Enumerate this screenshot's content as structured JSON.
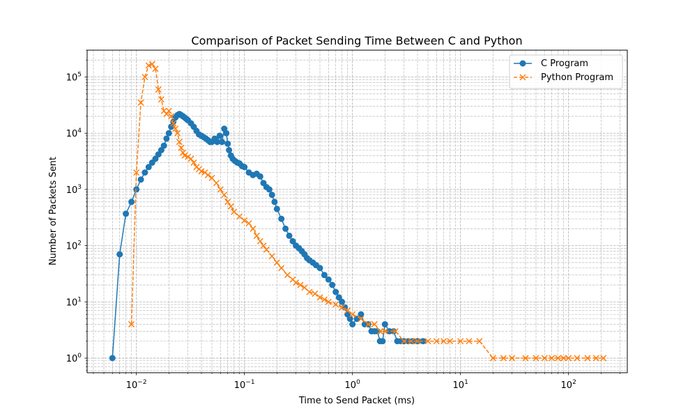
{
  "chart_data": {
    "type": "line",
    "title": "Comparison of Packet Sending Time Between C and Python",
    "xlabel": "Time to Send Packet (ms)",
    "ylabel": "Number of Packets Sent",
    "xscale": "log",
    "yscale": "log",
    "xlim": [
      0.0035,
      350
    ],
    "ylim": [
      0.55,
      300000
    ],
    "x_ticks": [
      {
        "value": 0.01,
        "base": "10",
        "exp": "−2"
      },
      {
        "value": 0.1,
        "base": "10",
        "exp": "−1"
      },
      {
        "value": 1,
        "base": "10",
        "exp": "0"
      },
      {
        "value": 10,
        "base": "10",
        "exp": "1"
      },
      {
        "value": 100,
        "base": "10",
        "exp": "2"
      }
    ],
    "y_ticks": [
      {
        "value": 1,
        "base": "10",
        "exp": "0"
      },
      {
        "value": 10,
        "base": "10",
        "exp": "1"
      },
      {
        "value": 100,
        "base": "10",
        "exp": "2"
      },
      {
        "value": 1000,
        "base": "10",
        "exp": "3"
      },
      {
        "value": 10000,
        "base": "10",
        "exp": "4"
      },
      {
        "value": 100000,
        "base": "10",
        "exp": "5"
      }
    ],
    "grid": true,
    "legend_position": "top-right",
    "series": [
      {
        "name": "C Program",
        "color": "#1f77b4",
        "marker": "circle",
        "linestyle": "solid",
        "x": [
          0.006,
          0.007,
          0.008,
          0.009,
          0.01,
          0.011,
          0.012,
          0.013,
          0.014,
          0.015,
          0.016,
          0.017,
          0.018,
          0.019,
          0.02,
          0.021,
          0.022,
          0.023,
          0.024,
          0.025,
          0.026,
          0.027,
          0.028,
          0.029,
          0.03,
          0.032,
          0.034,
          0.036,
          0.038,
          0.04,
          0.042,
          0.044,
          0.046,
          0.048,
          0.05,
          0.053,
          0.056,
          0.059,
          0.062,
          0.065,
          0.068,
          0.07,
          0.072,
          0.075,
          0.078,
          0.082,
          0.086,
          0.09,
          0.095,
          0.1,
          0.11,
          0.12,
          0.13,
          0.14,
          0.15,
          0.16,
          0.17,
          0.18,
          0.19,
          0.2,
          0.22,
          0.24,
          0.26,
          0.28,
          0.3,
          0.32,
          0.34,
          0.36,
          0.38,
          0.4,
          0.43,
          0.46,
          0.5,
          0.55,
          0.6,
          0.65,
          0.7,
          0.75,
          0.8,
          0.85,
          0.9,
          0.95,
          1.0,
          1.1,
          1.2,
          1.3,
          1.4,
          1.5,
          1.6,
          1.7,
          1.8,
          1.9,
          2.0,
          2.2,
          2.4,
          2.6,
          2.8,
          3.0,
          3.3,
          3.6,
          4.0,
          4.5
        ],
        "y": [
          1,
          70,
          370,
          600,
          1000,
          1500,
          2000,
          2500,
          3000,
          3500,
          4200,
          5000,
          6000,
          8000,
          10000,
          13000,
          16000,
          19000,
          21000,
          22000,
          21000,
          20000,
          19000,
          18000,
          17000,
          15000,
          13000,
          11000,
          9500,
          9000,
          8500,
          8000,
          7500,
          7000,
          7000,
          8000,
          7000,
          9000,
          7000,
          12000,
          10000,
          6500,
          5000,
          4000,
          3500,
          3200,
          3000,
          2900,
          2600,
          2500,
          2000,
          1800,
          1900,
          1700,
          1300,
          1100,
          1000,
          800,
          600,
          450,
          300,
          200,
          150,
          120,
          100,
          90,
          80,
          70,
          60,
          55,
          50,
          45,
          40,
          30,
          25,
          20,
          15,
          12,
          10,
          8,
          6,
          5,
          4,
          5,
          6,
          4,
          4,
          3,
          3,
          3,
          2,
          2,
          4,
          3,
          3,
          2,
          2,
          2,
          2,
          2,
          2,
          2
        ]
      },
      {
        "name": "Python Program",
        "color": "#ff7f0e",
        "marker": "x",
        "linestyle": "dashed",
        "x": [
          0.009,
          0.01,
          0.011,
          0.012,
          0.013,
          0.014,
          0.015,
          0.016,
          0.017,
          0.018,
          0.019,
          0.02,
          0.021,
          0.022,
          0.023,
          0.024,
          0.025,
          0.026,
          0.027,
          0.028,
          0.03,
          0.032,
          0.034,
          0.036,
          0.038,
          0.04,
          0.043,
          0.046,
          0.05,
          0.055,
          0.06,
          0.065,
          0.07,
          0.075,
          0.08,
          0.09,
          0.1,
          0.11,
          0.12,
          0.13,
          0.14,
          0.15,
          0.16,
          0.18,
          0.2,
          0.22,
          0.25,
          0.28,
          0.3,
          0.33,
          0.36,
          0.4,
          0.45,
          0.5,
          0.55,
          0.6,
          0.7,
          0.8,
          0.9,
          1.0,
          1.2,
          1.4,
          1.6,
          1.8,
          2.0,
          2.5,
          3.0,
          3.5,
          4.0,
          5.0,
          6.0,
          7.0,
          8.0,
          10,
          12,
          15,
          20,
          25,
          30,
          40,
          50,
          60,
          70,
          80,
          90,
          100,
          120,
          150,
          180,
          210
        ],
        "y": [
          4,
          2000,
          35000,
          100000,
          160000,
          170000,
          140000,
          60000,
          40000,
          25000,
          22000,
          25000,
          20000,
          15000,
          12000,
          10000,
          7000,
          5500,
          4500,
          4000,
          3800,
          3500,
          3000,
          2500,
          2300,
          2100,
          2000,
          1800,
          1600,
          1300,
          1000,
          800,
          600,
          500,
          400,
          330,
          280,
          250,
          200,
          150,
          120,
          100,
          85,
          65,
          50,
          40,
          30,
          25,
          22,
          20,
          18,
          15,
          14,
          12,
          11,
          10,
          9,
          8,
          7,
          6,
          5,
          4,
          4,
          3,
          3,
          3,
          2,
          2,
          2,
          2,
          2,
          2,
          2,
          2,
          2,
          2,
          1,
          1,
          1,
          1,
          1,
          1,
          1,
          1,
          1,
          1,
          1,
          1,
          1,
          1
        ]
      }
    ]
  }
}
